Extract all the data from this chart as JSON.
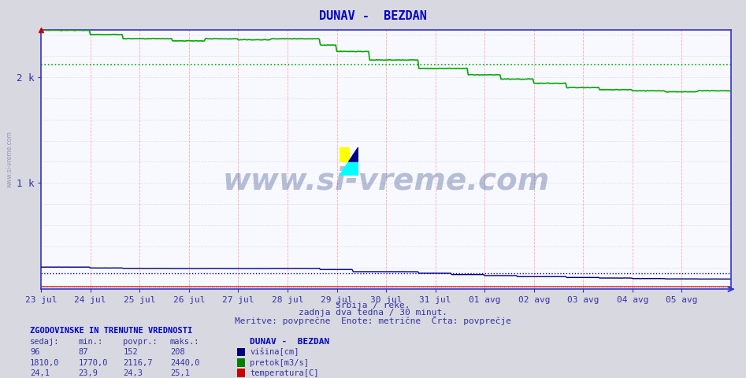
{
  "title": "DUNAV -  BEZDAN",
  "title_color": "#0000cc",
  "bg_color": "#d8d8e0",
  "plot_bg_color": "#ffffff",
  "n_points": 672,
  "ylim": [
    0,
    2440
  ],
  "xlabel_dates": [
    "23 jul",
    "24 jul",
    "25 jul",
    "26 jul",
    "27 jul",
    "28 jul",
    "29 jul",
    "30 jul",
    "31 jul",
    "01 avg",
    "02 avg",
    "03 avg",
    "04 avg",
    "05 avg"
  ],
  "footer_line1": "Srbija / reke.",
  "footer_line2": "zadnja dva tedna / 30 minut.",
  "footer_line3": "Meritve: povprečne  Enote: metrične  Črta: povprečje",
  "legend_title": "ZGODOVINSKE IN TRENUTNE VREDNOSTI",
  "legend_headers": [
    "sedaj:",
    "min.:",
    "povpr.:",
    "maks.:"
  ],
  "series": [
    {
      "name": "višina[cm]",
      "color": "#000080",
      "sedaj": 96,
      "min": 87,
      "povpr": 152,
      "maks": 208,
      "legend_color": "#000080"
    },
    {
      "name": "pretok[m3/s]",
      "color": "#008000",
      "sedaj": 1810.0,
      "min": 1770.0,
      "povpr": 2116.7,
      "maks": 2440.0,
      "legend_color": "#008000"
    },
    {
      "name": "temperatura[C]",
      "color": "#cc0000",
      "sedaj": 24.1,
      "min": 23.9,
      "povpr": 24.3,
      "maks": 25.1,
      "legend_color": "#cc0000"
    }
  ],
  "val_strs": [
    [
      "96",
      "87",
      "152",
      "208"
    ],
    [
      "1810,0",
      "1770,0",
      "2116,7",
      "2440,0"
    ],
    [
      "24,1",
      "23,9",
      "24,3",
      "25,1"
    ]
  ],
  "watermark": "www.si-vreme.com",
  "axis_color": "#3333cc"
}
